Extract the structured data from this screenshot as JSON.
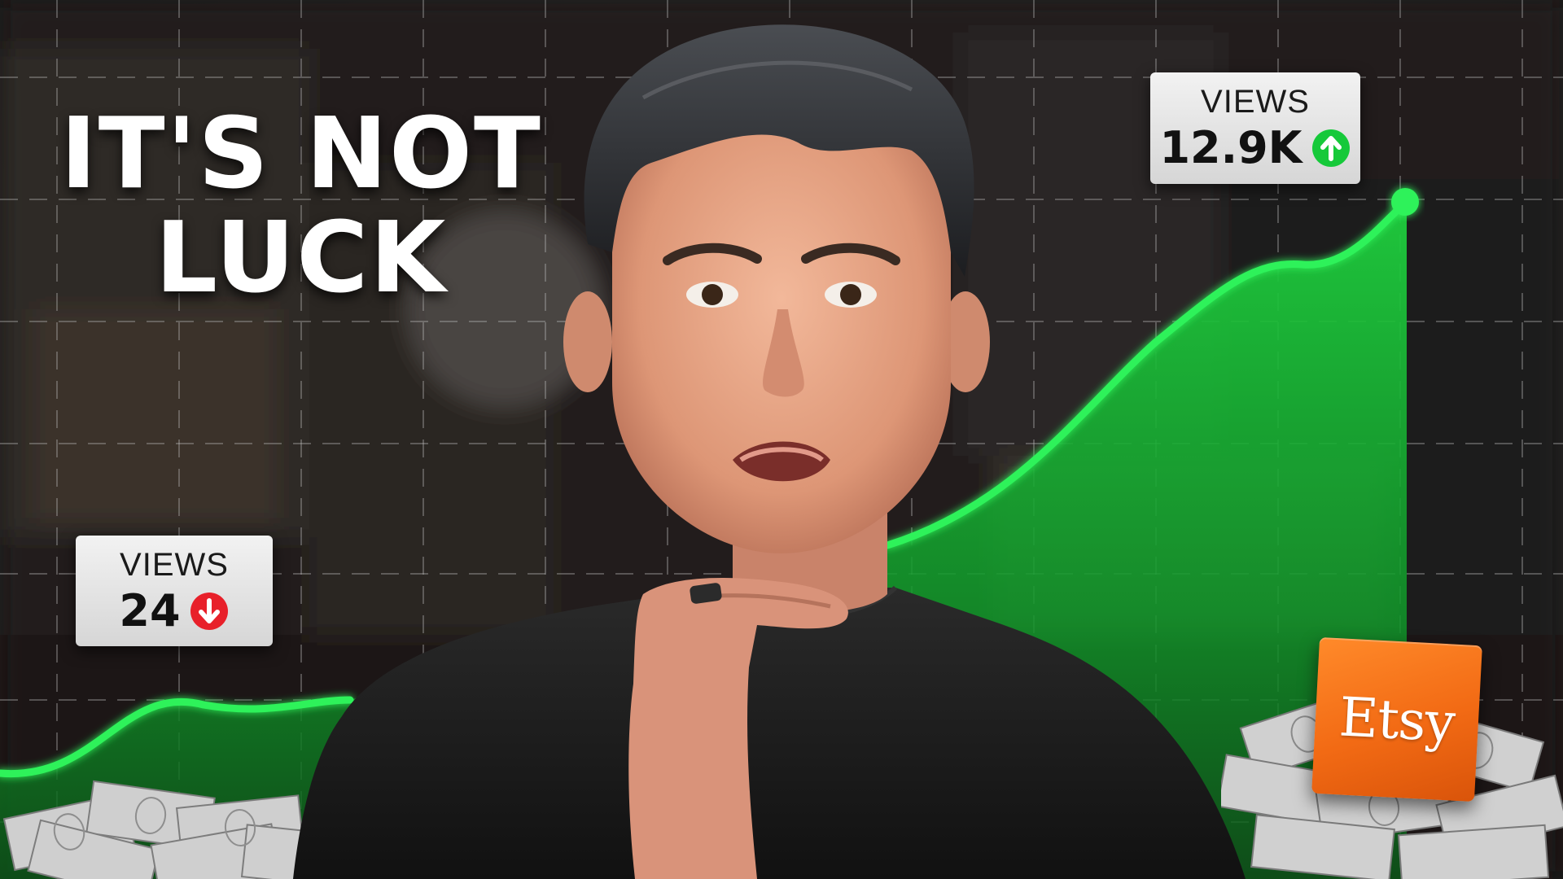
{
  "headline": {
    "line1": "IT'S NOT",
    "line2": "LUCK"
  },
  "views_low": {
    "label": "VIEWS",
    "value": "24",
    "trend_icon": "arrow-down-circle-icon",
    "trend_color": "#e8202a"
  },
  "views_high": {
    "label": "VIEWS",
    "value": "12.9K",
    "trend_icon": "arrow-up-circle-icon",
    "trend_color": "#16c93a"
  },
  "brand_badge": {
    "text": "Etsy",
    "color": "#f26a14"
  },
  "colors": {
    "chart_line": "#2df25a",
    "chart_fill": "#16a832",
    "grid": "#bfbfbf"
  }
}
